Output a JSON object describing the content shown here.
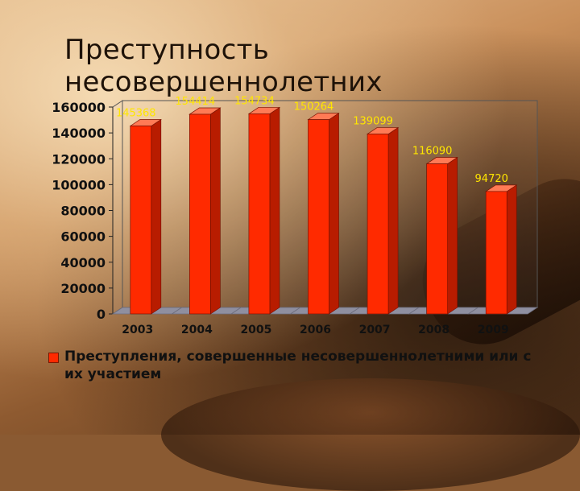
{
  "slide": {
    "title": "Преступность несовершеннолетних"
  },
  "colors": {
    "bar": "#ff2a00",
    "bar_side": "#b81c00",
    "bar_top": "#ff7a55",
    "floor": "#8f8fa0",
    "data_label": "#ffe600"
  },
  "chart_data": {
    "type": "bar",
    "categories": [
      "2003",
      "2004",
      "2005",
      "2006",
      "2007",
      "2008",
      "2009"
    ],
    "series": [
      {
        "name": "Преступления, совершенные несовершеннолетними или с их участием",
        "values": [
          145368,
          154414,
          154734,
          150264,
          139099,
          116090,
          94720
        ]
      }
    ],
    "data_labels": [
      "145368",
      "154414",
      "154734",
      "150264",
      "139099",
      "116090",
      "94720"
    ],
    "y_ticks": [
      "0",
      "20000",
      "40000",
      "60000",
      "80000",
      "100000",
      "120000",
      "140000",
      "160000"
    ],
    "ylim": [
      0,
      160000
    ],
    "grid": false,
    "legend_position": "bottom",
    "style": "3d-column"
  }
}
